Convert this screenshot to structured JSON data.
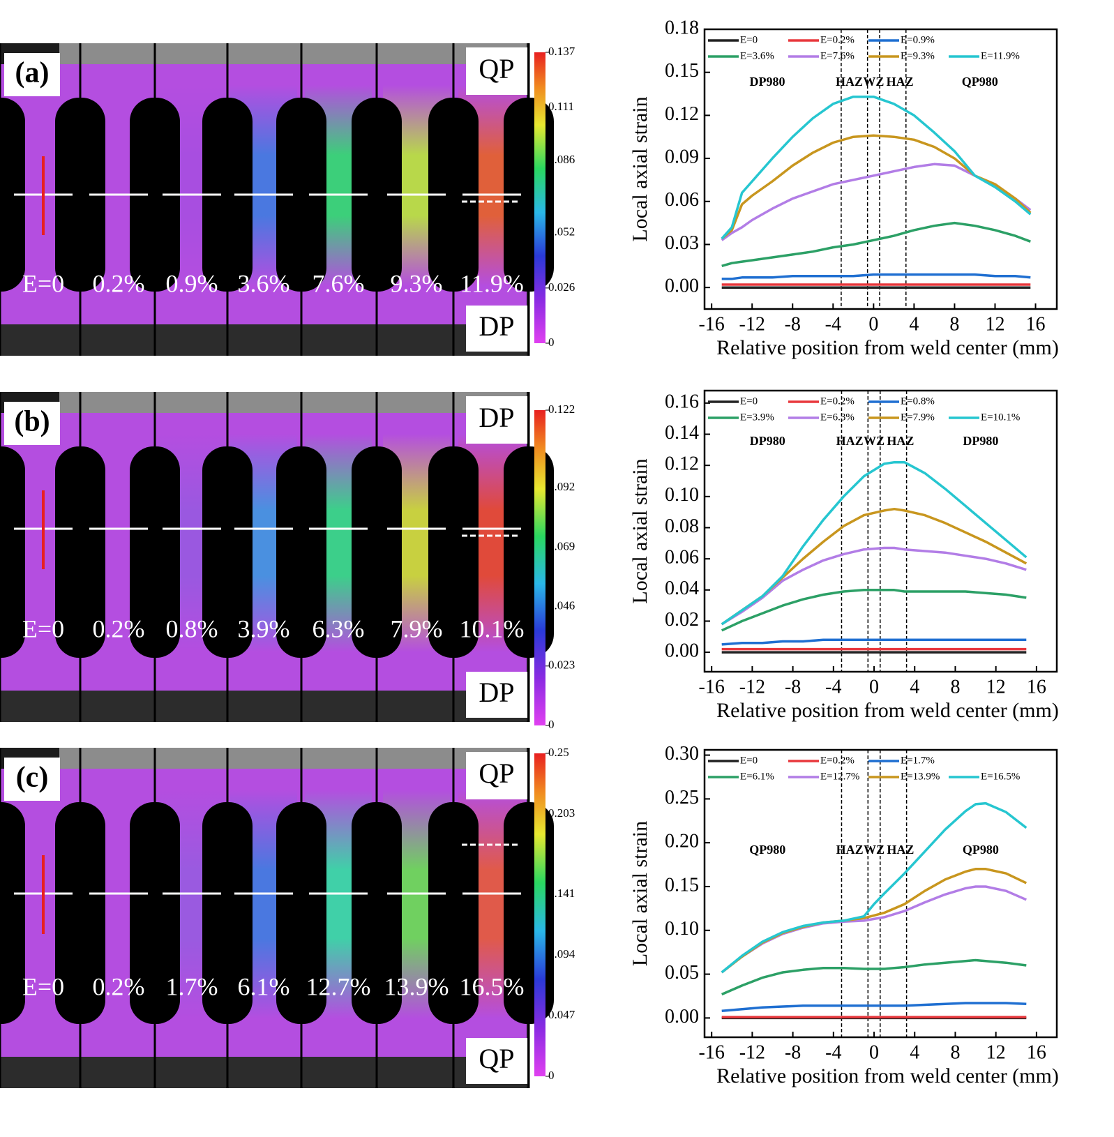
{
  "dic_images": [
    {
      "label": "(a)",
      "top": "QP",
      "bottom": "DP",
      "strain_labels": [
        "E=0",
        "0.2%",
        "0.9%",
        "3.6%",
        "7.6%",
        "9.3%",
        "11.9%"
      ],
      "colorbar": {
        "lim": [
          0,
          0.137
        ],
        "ticks": [
          0,
          0.026,
          0.052,
          0.086,
          0.111,
          0.137
        ]
      }
    },
    {
      "label": "(b)",
      "top": "DP",
      "bottom": "DP",
      "strain_labels": [
        "E=0",
        "0.2%",
        "0.8%",
        "3.9%",
        "6.3%",
        "7.9%",
        "10.1%"
      ],
      "colorbar": {
        "lim": [
          0,
          0.122
        ],
        "ticks": [
          0,
          0.023,
          0.046,
          0.069,
          0.092,
          0.122
        ]
      }
    },
    {
      "label": "(c)",
      "top": "QP",
      "bottom": "QP",
      "strain_labels": [
        "E=0",
        "0.2%",
        "1.7%",
        "6.1%",
        "12.7%",
        "13.9%",
        "16.5%"
      ],
      "colorbar": {
        "lim": [
          0,
          0.25
        ],
        "ticks": [
          0,
          0.047,
          0.094,
          0.141,
          0.203,
          0.25
        ]
      }
    }
  ],
  "chart_data": [
    {
      "type": "line",
      "x_label": "Relative position from weld center (mm)",
      "y_label": "Local axial strain",
      "xlim": [
        -16.7,
        18.1
      ],
      "ylim": [
        -0.015,
        0.18
      ],
      "xticks": [
        -16,
        -12,
        -8,
        -4,
        0,
        4,
        8,
        12,
        16
      ],
      "yticks": [
        {
          "value": 0,
          "label": "0.00"
        },
        {
          "value": 0.03,
          "label": "0.03"
        },
        {
          "value": 0.06,
          "label": "0.06"
        },
        {
          "value": 0.09,
          "label": "0.09"
        },
        {
          "value": 0.12,
          "label": "0.12"
        },
        {
          "value": 0.15,
          "label": "0.15"
        },
        {
          "value": 0.18,
          "label": "0.18"
        }
      ],
      "grid": false,
      "legend": "upper left",
      "vlines": [
        -3.2,
        -0.6,
        0.6,
        3.2
      ],
      "annotations": [
        "DP980",
        "HAZ",
        "WZ",
        "HAZ",
        "QP980"
      ],
      "x": [
        -15,
        -14,
        -13,
        -12,
        -10,
        -8,
        -6,
        -4,
        -2,
        0,
        2,
        4,
        6,
        8,
        10,
        12,
        14,
        15.5
      ],
      "series": [
        {
          "name": "E=0",
          "color": "#222222",
          "values": [
            0,
            0,
            0,
            0,
            0,
            0,
            0,
            0,
            0,
            0,
            0,
            0,
            0,
            0,
            0,
            0,
            0,
            0
          ]
        },
        {
          "name": "E=0.2%",
          "color": "#e8383d",
          "values": [
            0.002,
            0.002,
            0.002,
            0.002,
            0.002,
            0.002,
            0.002,
            0.002,
            0.002,
            0.002,
            0.002,
            0.002,
            0.002,
            0.002,
            0.002,
            0.002,
            0.002,
            0.002
          ]
        },
        {
          "name": "E=0.9%",
          "color": "#1f6fd1",
          "values": [
            0.006,
            0.006,
            0.007,
            0.007,
            0.007,
            0.008,
            0.008,
            0.008,
            0.008,
            0.009,
            0.009,
            0.009,
            0.009,
            0.009,
            0.009,
            0.008,
            0.008,
            0.007
          ]
        },
        {
          "name": "E=3.6%",
          "color": "#2ca066",
          "values": [
            0.015,
            0.017,
            0.018,
            0.019,
            0.021,
            0.023,
            0.025,
            0.028,
            0.03,
            0.033,
            0.036,
            0.04,
            0.043,
            0.045,
            0.043,
            0.04,
            0.036,
            0.032
          ]
        },
        {
          "name": "E=7.6%",
          "color": "#b27de6",
          "values": [
            0.033,
            0.038,
            0.042,
            0.047,
            0.055,
            0.062,
            0.067,
            0.072,
            0.075,
            0.078,
            0.081,
            0.084,
            0.086,
            0.085,
            0.078,
            0.071,
            0.062,
            0.054
          ]
        },
        {
          "name": "E=9.3%",
          "color": "#c8961e",
          "values": [
            0.034,
            0.04,
            0.058,
            0.064,
            0.074,
            0.085,
            0.094,
            0.101,
            0.105,
            0.106,
            0.105,
            0.103,
            0.098,
            0.09,
            0.078,
            0.072,
            0.062,
            0.052
          ]
        },
        {
          "name": "E=11.9%",
          "color": "#26c6d0",
          "values": [
            0.034,
            0.042,
            0.066,
            0.074,
            0.09,
            0.105,
            0.118,
            0.128,
            0.133,
            0.133,
            0.128,
            0.12,
            0.108,
            0.095,
            0.078,
            0.07,
            0.06,
            0.051
          ]
        }
      ]
    },
    {
      "type": "line",
      "x_label": "Relative position from weld center (mm)",
      "y_label": "Local axial strain",
      "xlim": [
        -16.7,
        18.0
      ],
      "ylim": [
        -0.0125,
        0.168
      ],
      "xticks": [
        -16,
        -12,
        -8,
        -4,
        0,
        4,
        8,
        12,
        16
      ],
      "yticks": [
        {
          "value": 0,
          "label": "0.00"
        },
        {
          "value": 0.02,
          "label": "0.02"
        },
        {
          "value": 0.04,
          "label": "0.04"
        },
        {
          "value": 0.06,
          "label": "0.06"
        },
        {
          "value": 0.08,
          "label": "0.08"
        },
        {
          "value": 0.1,
          "label": "0.10"
        },
        {
          "value": 0.12,
          "label": "0.12"
        },
        {
          "value": 0.14,
          "label": "0.14"
        },
        {
          "value": 0.16,
          "label": "0.16"
        }
      ],
      "grid": false,
      "legend": "upper left",
      "vlines": [
        -3.2,
        -0.6,
        0.6,
        3.2
      ],
      "annotations": [
        "DP980",
        "HAZ",
        "WZ",
        "HAZ",
        "DP980"
      ],
      "x": [
        -15,
        -13,
        -11,
        -9,
        -7,
        -5,
        -3,
        -1,
        1,
        2,
        3,
        5,
        7,
        9,
        11,
        13,
        15
      ],
      "series": [
        {
          "name": "E=0",
          "color": "#222222",
          "values": [
            0,
            0,
            0,
            0,
            0,
            0,
            0,
            0,
            0,
            0,
            0,
            0,
            0,
            0,
            0,
            0,
            0
          ]
        },
        {
          "name": "E=0.2%",
          "color": "#e8383d",
          "values": [
            0.002,
            0.002,
            0.002,
            0.002,
            0.002,
            0.002,
            0.002,
            0.002,
            0.002,
            0.002,
            0.002,
            0.002,
            0.002,
            0.002,
            0.002,
            0.002,
            0.002
          ]
        },
        {
          "name": "E=0.8%",
          "color": "#1f6fd1",
          "values": [
            0.005,
            0.006,
            0.006,
            0.007,
            0.007,
            0.008,
            0.008,
            0.008,
            0.008,
            0.008,
            0.008,
            0.008,
            0.008,
            0.008,
            0.008,
            0.008,
            0.008
          ]
        },
        {
          "name": "E=3.9%",
          "color": "#2ca066",
          "values": [
            0.014,
            0.02,
            0.025,
            0.03,
            0.034,
            0.037,
            0.039,
            0.04,
            0.04,
            0.04,
            0.039,
            0.039,
            0.039,
            0.039,
            0.038,
            0.037,
            0.035
          ]
        },
        {
          "name": "E=6.3%",
          "color": "#b27de6",
          "values": [
            0.018,
            0.026,
            0.035,
            0.046,
            0.053,
            0.059,
            0.063,
            0.066,
            0.067,
            0.067,
            0.066,
            0.065,
            0.064,
            0.062,
            0.06,
            0.057,
            0.053
          ]
        },
        {
          "name": "E=7.9%",
          "color": "#c8961e",
          "values": [
            0.018,
            0.027,
            0.036,
            0.048,
            0.06,
            0.071,
            0.081,
            0.088,
            0.091,
            0.092,
            0.091,
            0.088,
            0.083,
            0.077,
            0.071,
            0.064,
            0.057
          ]
        },
        {
          "name": "E=10.1%",
          "color": "#26c6d0",
          "values": [
            0.018,
            0.027,
            0.036,
            0.049,
            0.068,
            0.085,
            0.1,
            0.113,
            0.121,
            0.122,
            0.122,
            0.115,
            0.105,
            0.094,
            0.083,
            0.072,
            0.061
          ]
        }
      ]
    },
    {
      "type": "line",
      "x_label": "Relative position from weld center (mm)",
      "y_label": "Local axial strain",
      "xlim": [
        -16.7,
        18.0
      ],
      "ylim": [
        -0.022,
        0.306
      ],
      "xticks": [
        -16,
        -12,
        -8,
        -4,
        0,
        4,
        8,
        12,
        16
      ],
      "yticks": [
        {
          "value": 0,
          "label": "0.00"
        },
        {
          "value": 0.05,
          "label": "0.05"
        },
        {
          "value": 0.1,
          "label": "0.10"
        },
        {
          "value": 0.15,
          "label": "0.15"
        },
        {
          "value": 0.2,
          "label": "0.20"
        },
        0.25,
        {
          "value": 0.3,
          "label": "0.30"
        }
      ],
      "grid": false,
      "legend": "upper left",
      "vlines": [
        -3.2,
        -0.6,
        0.6,
        3.2
      ],
      "annotations": [
        "QP980",
        "HAZ",
        "WZ",
        "HAZ",
        "QP980"
      ],
      "x": [
        -15,
        -13,
        -11,
        -9,
        -7,
        -5,
        -3,
        -1,
        0,
        1,
        3,
        5,
        7,
        9,
        10,
        11,
        13,
        15
      ],
      "series": [
        {
          "name": "E=0",
          "color": "#222222",
          "values": [
            0,
            0,
            0,
            0,
            0,
            0,
            0,
            0,
            0,
            0,
            0,
            0,
            0,
            0,
            0,
            0,
            0,
            0
          ]
        },
        {
          "name": "E=0.2%",
          "color": "#e8383d",
          "values": [
            0.001,
            0.001,
            0.001,
            0.001,
            0.001,
            0.001,
            0.001,
            0.001,
            0.001,
            0.001,
            0.001,
            0.001,
            0.001,
            0.001,
            0.001,
            0.001,
            0.001,
            0.001
          ]
        },
        {
          "name": "E=1.7%",
          "color": "#1f6fd1",
          "values": [
            0.008,
            0.01,
            0.012,
            0.013,
            0.014,
            0.014,
            0.014,
            0.014,
            0.014,
            0.014,
            0.014,
            0.015,
            0.016,
            0.017,
            0.017,
            0.017,
            0.017,
            0.016
          ]
        },
        {
          "name": "E=6.1%",
          "color": "#2ca066",
          "values": [
            0.027,
            0.037,
            0.046,
            0.052,
            0.055,
            0.057,
            0.057,
            0.056,
            0.056,
            0.056,
            0.058,
            0.061,
            0.063,
            0.065,
            0.066,
            0.065,
            0.063,
            0.06
          ]
        },
        {
          "name": "E=12.7%",
          "color": "#b27de6",
          "values": [
            0.052,
            0.07,
            0.085,
            0.096,
            0.103,
            0.108,
            0.11,
            0.111,
            0.113,
            0.115,
            0.122,
            0.132,
            0.141,
            0.148,
            0.15,
            0.15,
            0.145,
            0.135
          ]
        },
        {
          "name": "E=13.9%",
          "color": "#c8961e",
          "values": [
            0.052,
            0.07,
            0.086,
            0.097,
            0.104,
            0.109,
            0.111,
            0.114,
            0.117,
            0.12,
            0.13,
            0.145,
            0.158,
            0.167,
            0.17,
            0.17,
            0.165,
            0.154
          ]
        },
        {
          "name": "E=16.5%",
          "color": "#26c6d0",
          "values": [
            0.052,
            0.071,
            0.087,
            0.098,
            0.105,
            0.109,
            0.111,
            0.116,
            0.13,
            0.142,
            0.165,
            0.19,
            0.215,
            0.236,
            0.244,
            0.245,
            0.235,
            0.217
          ]
        }
      ]
    }
  ]
}
